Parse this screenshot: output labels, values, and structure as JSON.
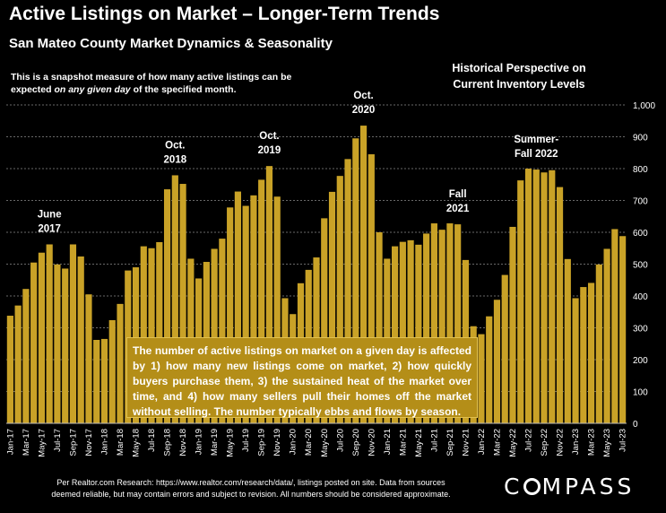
{
  "header": {
    "title": "Active Listings on Market – Longer-Term Trends",
    "subtitle": "San Mateo County Market Dynamics & Seasonality",
    "note_part1": "This is a snapshot measure of how many active listings can be expected ",
    "note_em": "on any given day",
    "note_part2": " of the specified month.",
    "historical_line1": "Historical Perspective on",
    "historical_line2": "Current Inventory Levels"
  },
  "callout": {
    "text": "The number of active listings on market on a given day is affected by 1) how many new listings come on market, 2) how quickly buyers purchase them, 3) the sustained heat of the market over time, and 4) how many sellers pull their homes off the market without selling. The number typically ebbs and flows by season."
  },
  "footer": {
    "line1": "Per Realtor.com Research:  https://www.realtor.com/research/data/, listings posted on site. Data from sources",
    "line2": "deemed reliable, but may contain errors and subject to revision. All numbers should be considered approximate."
  },
  "logo": {
    "before": "C",
    "after": "MPASS"
  },
  "colors": {
    "bar": "#c9a227",
    "background": "#000000",
    "grid": "#8a8a8a",
    "callout": "#b48e18"
  },
  "chart_data": {
    "type": "bar",
    "ylim": [
      0,
      1000
    ],
    "y_ticks": [
      "0",
      "100",
      "200",
      "300",
      "400",
      "500",
      "600",
      "700",
      "800",
      "900",
      "1,000"
    ],
    "y_axis_side": "right",
    "grid": true,
    "categories": [
      "Jan-17",
      "Feb-17",
      "Mar-17",
      "Apr-17",
      "May-17",
      "Jun-17",
      "Jul-17",
      "Aug-17",
      "Sep-17",
      "Oct-17",
      "Nov-17",
      "Dec-17",
      "Jan-18",
      "Feb-18",
      "Mar-18",
      "Apr-18",
      "May-18",
      "Jun-18",
      "Jul-18",
      "Aug-18",
      "Sep-18",
      "Oct-18",
      "Nov-18",
      "Dec-18",
      "Jan-19",
      "Feb-19",
      "Mar-19",
      "Apr-19",
      "May-19",
      "Jun-19",
      "Jul-19",
      "Aug-19",
      "Sep-19",
      "Oct-19",
      "Nov-19",
      "Dec-19",
      "Jan-20",
      "Feb-20",
      "Mar-20",
      "Apr-20",
      "May-20",
      "Jun-20",
      "Jul-20",
      "Aug-20",
      "Sep-20",
      "Oct-20",
      "Nov-20",
      "Dec-20",
      "Jan-21",
      "Feb-21",
      "Mar-21",
      "Apr-21",
      "May-21",
      "Jun-21",
      "Jul-21",
      "Aug-21",
      "Sep-21",
      "Oct-21",
      "Nov-21",
      "Dec-21",
      "Jan-22",
      "Feb-22",
      "Mar-22",
      "Apr-22",
      "May-22",
      "Jun-22",
      "Jul-22",
      "Aug-22",
      "Sep-22",
      "Oct-22",
      "Nov-22",
      "Dec-22",
      "Jan-23",
      "Feb-23",
      "Mar-23",
      "Apr-23",
      "May-23",
      "Jun-23",
      "Jul-23"
    ],
    "x_tick_labels": [
      "Jan-17",
      "Mar-17",
      "May-17",
      "Jul-17",
      "Sep-17",
      "Nov-17",
      "Jan-18",
      "Mar-18",
      "May-18",
      "Jul-18",
      "Sep-18",
      "Nov-18",
      "Jan-19",
      "Mar-19",
      "May-19",
      "Jul-19",
      "Sep-19",
      "Nov-19",
      "Jan-20",
      "Mar-20",
      "May-20",
      "Jul-20",
      "Sep-20",
      "Nov-20",
      "Jan-21",
      "Mar-21",
      "May-21",
      "Jul-21",
      "Sep-21",
      "Nov-21",
      "Jan-22",
      "Mar-22",
      "May-22",
      "Jul-22",
      "Sep-22",
      "Nov-22",
      "Jan-23",
      "Mar-23",
      "May-23",
      "Jul-23"
    ],
    "values": [
      338,
      370,
      422,
      505,
      536,
      562,
      499,
      486,
      562,
      524,
      405,
      262,
      265,
      324,
      375,
      480,
      490,
      556,
      550,
      569,
      735,
      779,
      752,
      517,
      455,
      507,
      548,
      580,
      678,
      728,
      683,
      716,
      765,
      808,
      712,
      393,
      343,
      440,
      482,
      521,
      644,
      727,
      777,
      830,
      895,
      935,
      845,
      600,
      517,
      556,
      570,
      575,
      561,
      596,
      628,
      608,
      628,
      625,
      513,
      305,
      280,
      336,
      388,
      466,
      617,
      763,
      800,
      797,
      788,
      795,
      742,
      516,
      393,
      428,
      441,
      499,
      548,
      610,
      588
    ],
    "annotations": [
      {
        "label_line1": "June",
        "label_line2": "2017",
        "category": "Jun-17"
      },
      {
        "label_line1": "Oct.",
        "label_line2": "2018",
        "category": "Oct-18"
      },
      {
        "label_line1": "Oct.",
        "label_line2": "2019",
        "category": "Oct-19"
      },
      {
        "label_line1": "Oct.",
        "label_line2": "2020",
        "category": "Oct-20"
      },
      {
        "label_line1": "Fall",
        "label_line2": "2021",
        "category": "Oct-21"
      },
      {
        "label_line1": "Summer-",
        "label_line2": "Fall 2022",
        "category": "Aug-22"
      }
    ]
  }
}
